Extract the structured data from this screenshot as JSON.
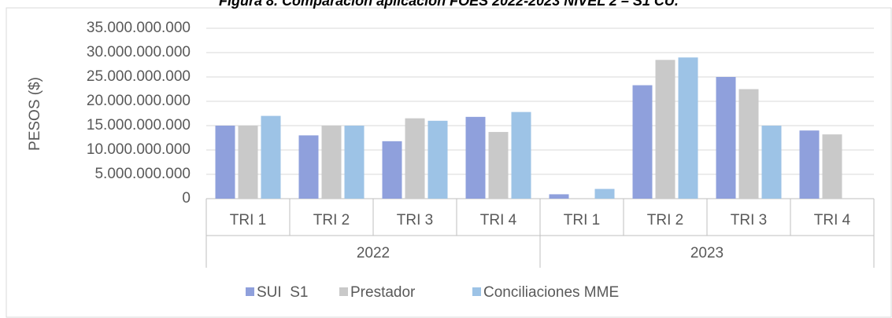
{
  "chart_data": {
    "type": "bar",
    "title": "Figura 8. Comparación aplicación FOES 2022-2023 NIVEL 2 – S1 CU.",
    "y_label": "PESOS ($)",
    "categories": [
      "TRI 1",
      "TRI 2",
      "TRI 3",
      "TRI 4",
      "TRI 1",
      "TRI 2",
      "TRI 3",
      "TRI 4"
    ],
    "group_labels": [
      "2022",
      "2023"
    ],
    "series": [
      {
        "name": "SUI  S1",
        "color": "#8fa0dc",
        "values": [
          15000000000,
          13000000000,
          11800000000,
          16800000000,
          900000000,
          23300000000,
          25000000000,
          14000000000
        ]
      },
      {
        "name": "Prestador",
        "color": "#c9c9c9",
        "values": [
          15000000000,
          15000000000,
          16500000000,
          13700000000,
          0,
          28500000000,
          22500000000,
          13200000000
        ]
      },
      {
        "name": "Conciliaciones MME",
        "color": "#9dc3e6",
        "values": [
          17000000000,
          15000000000,
          16000000000,
          17800000000,
          2000000000,
          29000000000,
          15000000000,
          0
        ]
      }
    ],
    "ylim": [
      0,
      35000000000
    ],
    "yticks": [
      0,
      {
        "value": 5000000000,
        "label": "5.000.000.000"
      },
      {
        "value": 10000000000,
        "label": "10.000.000.000"
      },
      {
        "value": 15000000000,
        "label": "15.000.000.000"
      },
      {
        "value": 20000000000,
        "label": "20.000.000.000"
      },
      {
        "value": 25000000000,
        "label": "25.000.000.000"
      },
      {
        "value": 30000000000,
        "label": "30.000.000.000"
      },
      {
        "value": 35000000000,
        "label": "35.000.000.000"
      }
    ],
    "grid": true,
    "legend": "bottom"
  }
}
